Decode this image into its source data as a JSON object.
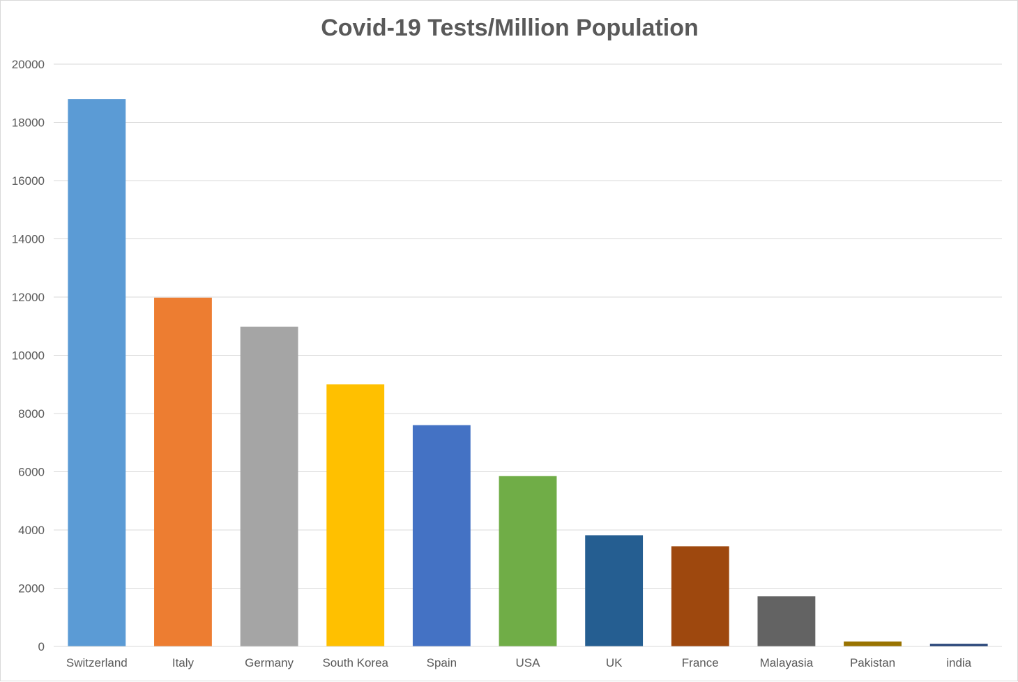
{
  "chart_data": {
    "type": "bar",
    "title": "Covid-19 Tests/Million Population",
    "xlabel": "",
    "ylabel": "",
    "categories": [
      "Switzerland",
      "Italy",
      "Germany",
      "South Korea",
      "Spain",
      "USA",
      "UK",
      "France",
      "Malayasia",
      "Pakistan",
      "india"
    ],
    "values": [
      18800,
      11980,
      10980,
      9000,
      7600,
      5850,
      3820,
      3440,
      1720,
      170,
      90
    ],
    "colors": [
      "#5b9bd5",
      "#ed7d31",
      "#a5a5a5",
      "#ffc000",
      "#4472c4",
      "#70ad47",
      "#255e91",
      "#9e480e",
      "#636363",
      "#997300",
      "#264478"
    ],
    "ylim": [
      0,
      20000
    ],
    "yticks": [
      "0",
      "2000",
      "4000",
      "6000",
      "8000",
      "10000",
      "12000",
      "14000",
      "16000",
      "18000",
      "20000"
    ],
    "grid": true,
    "legend": "none"
  }
}
